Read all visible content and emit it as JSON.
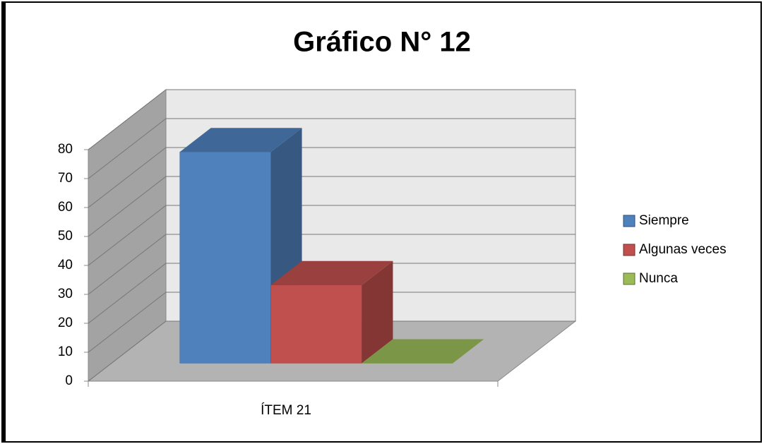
{
  "chart_data": {
    "type": "bar3d",
    "title": "Gráfico N° 12",
    "categories": [
      "ÍTEM 21"
    ],
    "series": [
      {
        "name": "Siempre",
        "color": "#4f81bd",
        "values": [
          73
        ]
      },
      {
        "name": "Algunas veces",
        "color": "#c0504d",
        "values": [
          27
        ]
      },
      {
        "name": "Nunca",
        "color": "#9bbb59",
        "values": [
          0
        ]
      }
    ],
    "ylim": [
      0,
      80
    ],
    "yticks": [
      0,
      10,
      20,
      30,
      40,
      50,
      60,
      70,
      80
    ],
    "grid": true,
    "legend": "right"
  }
}
